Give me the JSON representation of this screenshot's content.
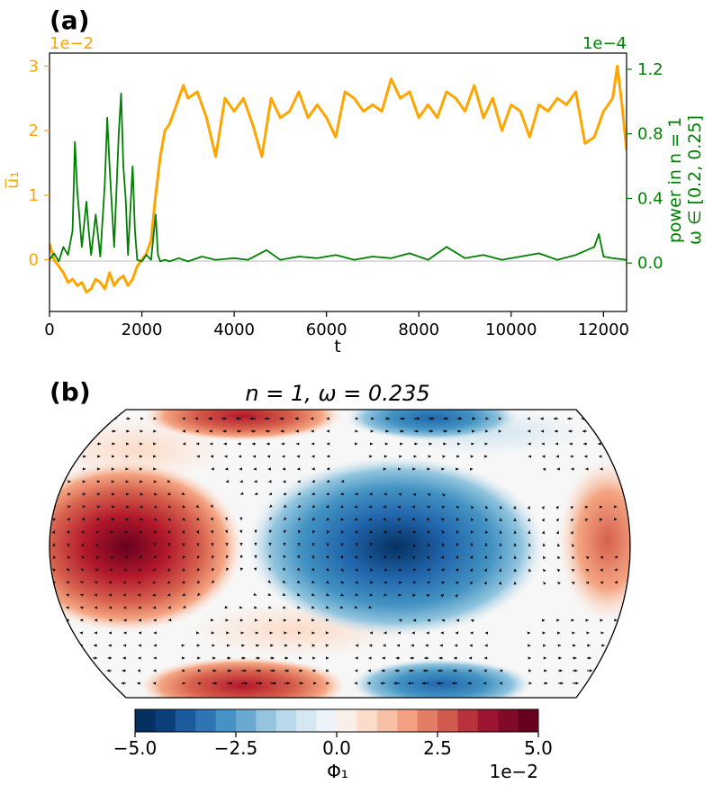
{
  "colors": {
    "orange": "#ffa500",
    "green": "#008000",
    "zero_line": "#bbbbbb",
    "colormap": "RdBu_r"
  },
  "panel_a": {
    "label": "(a)",
    "left_offset": "1e−2",
    "right_offset": "1e−4",
    "xlabel": "t",
    "ylabel_left": "u̅₁",
    "ylabel_right_line1": "power in n = 1",
    "ylabel_right_line2": "ω ∈ [0.2, 0.25]",
    "xticks": [
      "0",
      "2000",
      "4000",
      "6000",
      "8000",
      "10000",
      "12000"
    ],
    "yticks_left": [
      "0",
      "1",
      "2",
      "3"
    ],
    "yticks_right": [
      "0.0",
      "0.4",
      "0.8",
      "1.2"
    ]
  },
  "panel_b": {
    "label": "(b)",
    "title": "n = 1, ω = 0.235",
    "cbar_ticks": [
      "−5.0",
      "−2.5",
      "0.0",
      "2.5",
      "5.0"
    ],
    "cbar_label": "Φ₁",
    "cbar_offset": "1e−2"
  },
  "chart_data": [
    {
      "type": "line",
      "x_range": [
        0,
        12500
      ],
      "ylim_left": [
        -0.8,
        3.2
      ],
      "ylim_right": [
        -0.3,
        1.3
      ],
      "grid": false,
      "series": [
        {
          "axis": "left",
          "color": "#ffa500",
          "x": [
            0,
            100,
            200,
            300,
            400,
            500,
            600,
            700,
            800,
            900,
            1000,
            1100,
            1200,
            1300,
            1400,
            1500,
            1600,
            1700,
            1800,
            1900,
            2000,
            2100,
            2200,
            2300,
            2400,
            2500,
            2600,
            2700,
            2800,
            2900,
            3000,
            3200,
            3400,
            3600,
            3800,
            4000,
            4200,
            4400,
            4600,
            4800,
            5000,
            5200,
            5400,
            5600,
            5800,
            6000,
            6200,
            6400,
            6600,
            6800,
            7000,
            7200,
            7400,
            7600,
            7800,
            8000,
            8200,
            8400,
            8600,
            8800,
            9000,
            9200,
            9400,
            9600,
            9800,
            10000,
            10200,
            10400,
            10600,
            10800,
            11000,
            11200,
            11400,
            11600,
            11800,
            12000,
            12200,
            12300,
            12400,
            12500
          ],
          "y": [
            0.25,
            0.0,
            -0.1,
            -0.2,
            -0.35,
            -0.3,
            -0.4,
            -0.35,
            -0.5,
            -0.45,
            -0.3,
            -0.35,
            -0.45,
            -0.2,
            -0.4,
            -0.3,
            -0.25,
            -0.4,
            -0.3,
            -0.1,
            0.0,
            0.1,
            0.3,
            1.0,
            1.6,
            2.0,
            2.1,
            2.3,
            2.5,
            2.7,
            2.5,
            2.6,
            2.2,
            1.6,
            2.5,
            2.3,
            2.5,
            2.1,
            1.6,
            2.5,
            2.2,
            2.3,
            2.6,
            2.2,
            2.4,
            2.2,
            1.9,
            2.6,
            2.5,
            2.3,
            2.4,
            2.3,
            2.8,
            2.5,
            2.6,
            2.2,
            2.4,
            2.2,
            2.6,
            2.5,
            2.3,
            2.7,
            2.2,
            2.5,
            2.0,
            2.4,
            2.3,
            1.9,
            2.4,
            2.3,
            2.5,
            2.4,
            2.6,
            1.8,
            1.9,
            2.3,
            2.5,
            3.0,
            2.4,
            1.7
          ]
        },
        {
          "axis": "right",
          "color": "#008000",
          "x": [
            0,
            100,
            200,
            300,
            400,
            500,
            550,
            600,
            700,
            800,
            850,
            900,
            1000,
            1100,
            1200,
            1250,
            1300,
            1400,
            1500,
            1550,
            1600,
            1650,
            1700,
            1800,
            1850,
            1900,
            2000,
            2100,
            2200,
            2300,
            2350,
            2400,
            2500,
            2600,
            2800,
            3000,
            3300,
            3600,
            4000,
            4300,
            4700,
            5000,
            5400,
            5800,
            6200,
            6600,
            7000,
            7400,
            7800,
            8200,
            8600,
            9000,
            9400,
            9800,
            10200,
            10600,
            11000,
            11400,
            11800,
            11900,
            12000,
            12200,
            12500
          ],
          "y": [
            0.02,
            0.06,
            0.01,
            0.1,
            0.05,
            0.2,
            0.75,
            0.45,
            0.1,
            0.38,
            0.2,
            0.05,
            0.3,
            0.04,
            0.5,
            0.9,
            0.6,
            0.1,
            0.8,
            1.05,
            0.6,
            0.4,
            0.05,
            0.6,
            0.2,
            0.02,
            0.01,
            0.05,
            0.02,
            0.3,
            0.05,
            0.01,
            0.02,
            0.01,
            0.03,
            0.01,
            0.04,
            0.02,
            0.03,
            0.02,
            0.08,
            0.02,
            0.04,
            0.03,
            0.05,
            0.02,
            0.04,
            0.03,
            0.06,
            0.02,
            0.1,
            0.03,
            0.05,
            0.02,
            0.04,
            0.06,
            0.02,
            0.05,
            0.1,
            0.18,
            0.04,
            0.03,
            0.02
          ]
        }
      ]
    },
    {
      "type": "heatmap",
      "projection": "robinson",
      "colormap": "RdBu_r",
      "value_range": [
        -0.05,
        0.05
      ],
      "levels": [
        -0.05,
        -0.045,
        -0.04,
        -0.035,
        -0.03,
        -0.025,
        -0.02,
        -0.015,
        -0.01,
        -0.005,
        0,
        0.005,
        0.01,
        0.015,
        0.02,
        0.025,
        0.03,
        0.035,
        0.04,
        0.045,
        0.05
      ],
      "features": [
        {
          "sign": "positive",
          "lon": -150,
          "lat": 0,
          "amplitude": 0.05
        },
        {
          "sign": "negative",
          "lon": 20,
          "lat": 0,
          "amplitude": 0.05
        },
        {
          "sign": "positive",
          "lon": 170,
          "lat": 0,
          "amplitude": 0.03
        },
        {
          "sign": "positive",
          "lon": -60,
          "lat": 75,
          "amplitude": 0.035
        },
        {
          "sign": "negative",
          "lon": 40,
          "lat": 75,
          "amplitude": 0.03
        },
        {
          "sign": "positive",
          "lon": -60,
          "lat": -75,
          "amplitude": 0.04
        },
        {
          "sign": "negative",
          "lon": 40,
          "lat": -75,
          "amplitude": 0.035
        }
      ],
      "quiver": "wind vectors"
    }
  ]
}
